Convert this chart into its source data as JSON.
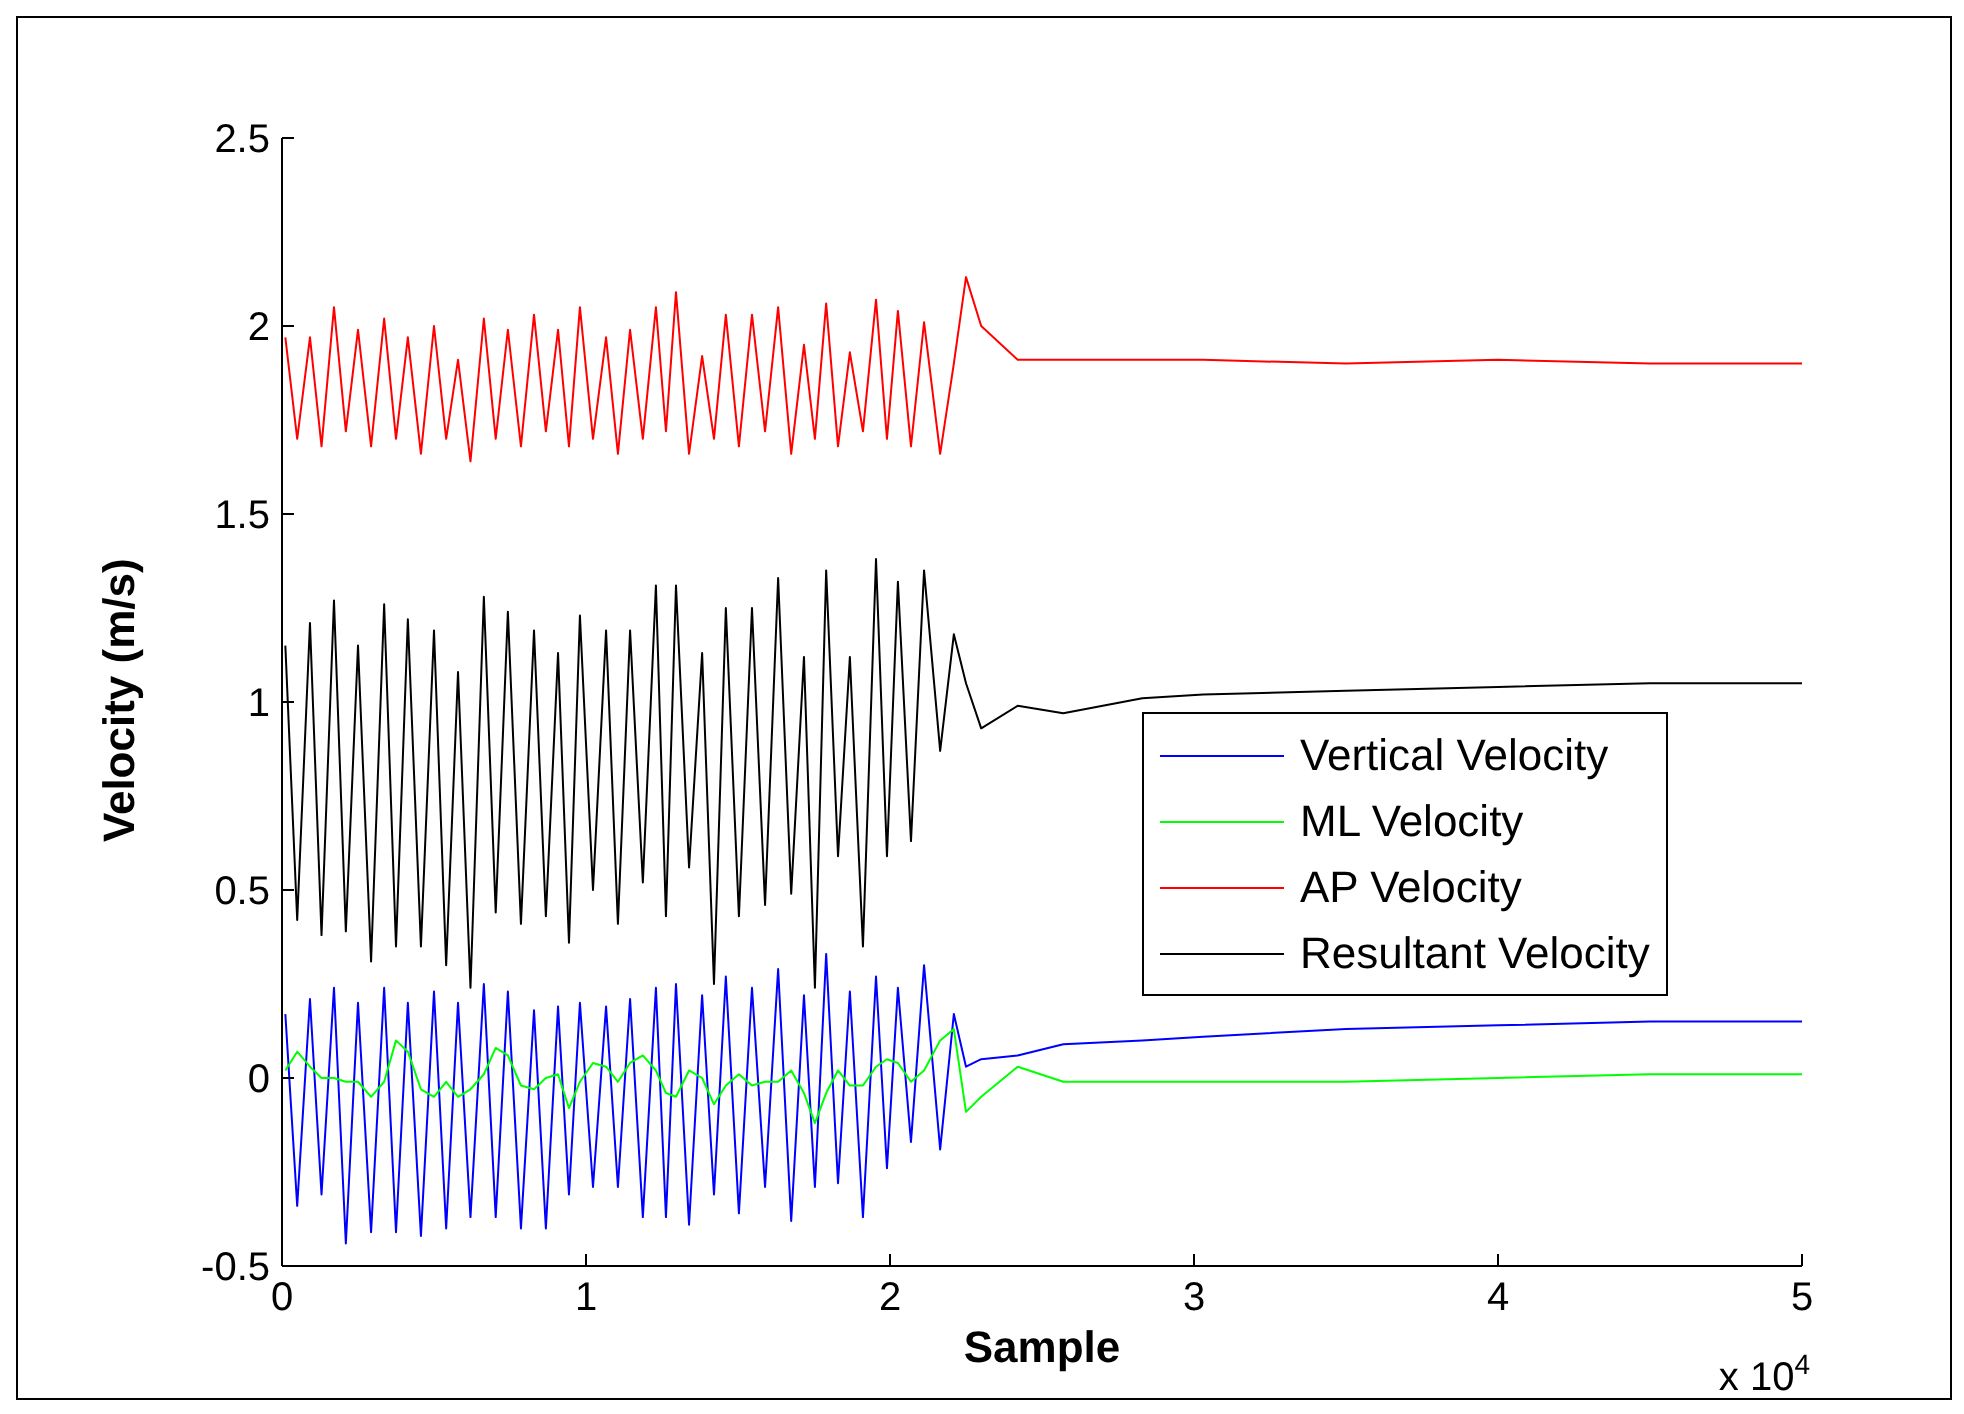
{
  "chart_data": {
    "type": "line",
    "xlabel": "Sample",
    "ylabel": "Velocity (m/s)",
    "annotations": [
      "x 10$^{4}$"
    ],
    "x": [
      0.011,
      0.05,
      0.092,
      0.13,
      0.171,
      0.21,
      0.25,
      0.293,
      0.336,
      0.375,
      0.414,
      0.457,
      0.5,
      0.54,
      0.579,
      0.62,
      0.664,
      0.703,
      0.743,
      0.786,
      0.829,
      0.868,
      0.908,
      0.944,
      0.98,
      1.023,
      1.066,
      1.105,
      1.145,
      1.187,
      1.23,
      1.263,
      1.296,
      1.339,
      1.382,
      1.421,
      1.46,
      1.503,
      1.546,
      1.589,
      1.632,
      1.675,
      1.717,
      1.753,
      1.79,
      1.829,
      1.868,
      1.911,
      1.954,
      1.99,
      2.026,
      2.069,
      2.112,
      2.165,
      2.21,
      2.25,
      2.3,
      2.42,
      2.57,
      2.83,
      3.03,
      3.5,
      4,
      4.5,
      5
    ],
    "series": [
      {
        "name": "Vertical Velocity",
        "color": "#0000ff",
        "values": [
          0.17,
          -0.34,
          0.21,
          -0.31,
          0.24,
          -0.44,
          0.2,
          -0.41,
          0.24,
          -0.41,
          0.2,
          -0.42,
          0.23,
          -0.4,
          0.2,
          -0.37,
          0.25,
          -0.37,
          0.23,
          -0.4,
          0.18,
          -0.4,
          0.19,
          -0.31,
          0.2,
          -0.29,
          0.19,
          -0.29,
          0.21,
          -0.37,
          0.24,
          -0.37,
          0.25,
          -0.39,
          0.22,
          -0.31,
          0.27,
          -0.36,
          0.24,
          -0.29,
          0.29,
          -0.38,
          0.22,
          -0.29,
          0.33,
          -0.28,
          0.23,
          -0.37,
          0.27,
          -0.24,
          0.24,
          -0.17,
          0.3,
          -0.19,
          0.17,
          0.03,
          0.05,
          0.06,
          0.09,
          0.1,
          0.11,
          0.13,
          0.14,
          0.15,
          0.15
        ]
      },
      {
        "name": "ML Velocity",
        "color": "#00ff00",
        "values": [
          0.02,
          0.07,
          0.03,
          0.0,
          0.0,
          -0.01,
          -0.01,
          -0.05,
          -0.01,
          0.1,
          0.07,
          -0.03,
          -0.05,
          -0.01,
          -0.05,
          -0.03,
          0.01,
          0.08,
          0.06,
          -0.02,
          -0.03,
          0.0,
          0.01,
          -0.08,
          -0.01,
          0.04,
          0.03,
          -0.01,
          0.04,
          0.06,
          0.02,
          -0.04,
          -0.05,
          0.02,
          0.0,
          -0.07,
          -0.02,
          0.01,
          -0.02,
          -0.01,
          -0.01,
          0.02,
          -0.04,
          -0.12,
          -0.04,
          0.02,
          -0.02,
          -0.02,
          0.03,
          0.05,
          0.04,
          -0.01,
          0.02,
          0.1,
          0.13,
          -0.09,
          -0.05,
          0.03,
          -0.01,
          -0.01,
          -0.01,
          -0.01,
          0.0,
          0.01,
          0.01
        ]
      },
      {
        "name": "AP Velocity",
        "color": "#ff0000",
        "values": [
          1.97,
          1.7,
          1.97,
          1.68,
          2.05,
          1.72,
          1.99,
          1.68,
          2.02,
          1.7,
          1.97,
          1.66,
          2.0,
          1.7,
          1.91,
          1.64,
          2.02,
          1.7,
          1.99,
          1.68,
          2.03,
          1.72,
          1.99,
          1.68,
          2.05,
          1.7,
          1.97,
          1.66,
          1.99,
          1.7,
          2.05,
          1.72,
          2.09,
          1.66,
          1.92,
          1.7,
          2.03,
          1.68,
          2.03,
          1.72,
          2.05,
          1.66,
          1.95,
          1.7,
          2.06,
          1.68,
          1.93,
          1.72,
          2.07,
          1.7,
          2.04,
          1.68,
          2.01,
          1.66,
          1.9,
          2.13,
          2.0,
          1.91,
          1.91,
          1.91,
          1.91,
          1.9,
          1.91,
          1.9,
          1.9
        ]
      },
      {
        "name": "Resultant Velocity",
        "color": "#000000",
        "values": [
          1.15,
          0.42,
          1.21,
          0.38,
          1.27,
          0.39,
          1.15,
          0.31,
          1.26,
          0.35,
          1.22,
          0.35,
          1.19,
          0.3,
          1.08,
          0.24,
          1.28,
          0.44,
          1.24,
          0.41,
          1.19,
          0.43,
          1.13,
          0.36,
          1.23,
          0.5,
          1.19,
          0.41,
          1.19,
          0.52,
          1.31,
          0.43,
          1.31,
          0.56,
          1.13,
          0.25,
          1.25,
          0.43,
          1.25,
          0.46,
          1.33,
          0.49,
          1.12,
          0.24,
          1.35,
          0.59,
          1.12,
          0.35,
          1.38,
          0.59,
          1.32,
          0.63,
          1.35,
          0.87,
          1.18,
          1.05,
          0.93,
          0.99,
          0.97,
          1.01,
          1.02,
          1.03,
          1.04,
          1.05,
          1.05
        ]
      }
    ],
    "xlim": [
      0,
      5
    ],
    "xticks": [
      0,
      1,
      2,
      3,
      4,
      5
    ],
    "ylim": [
      -0.5,
      2.5
    ],
    "yticks": [
      -0.5,
      0,
      0.5,
      1,
      1.5,
      2,
      2.5
    ],
    "legend": "right",
    "marker": "none",
    "line_style": "solid",
    "grid": false
  }
}
